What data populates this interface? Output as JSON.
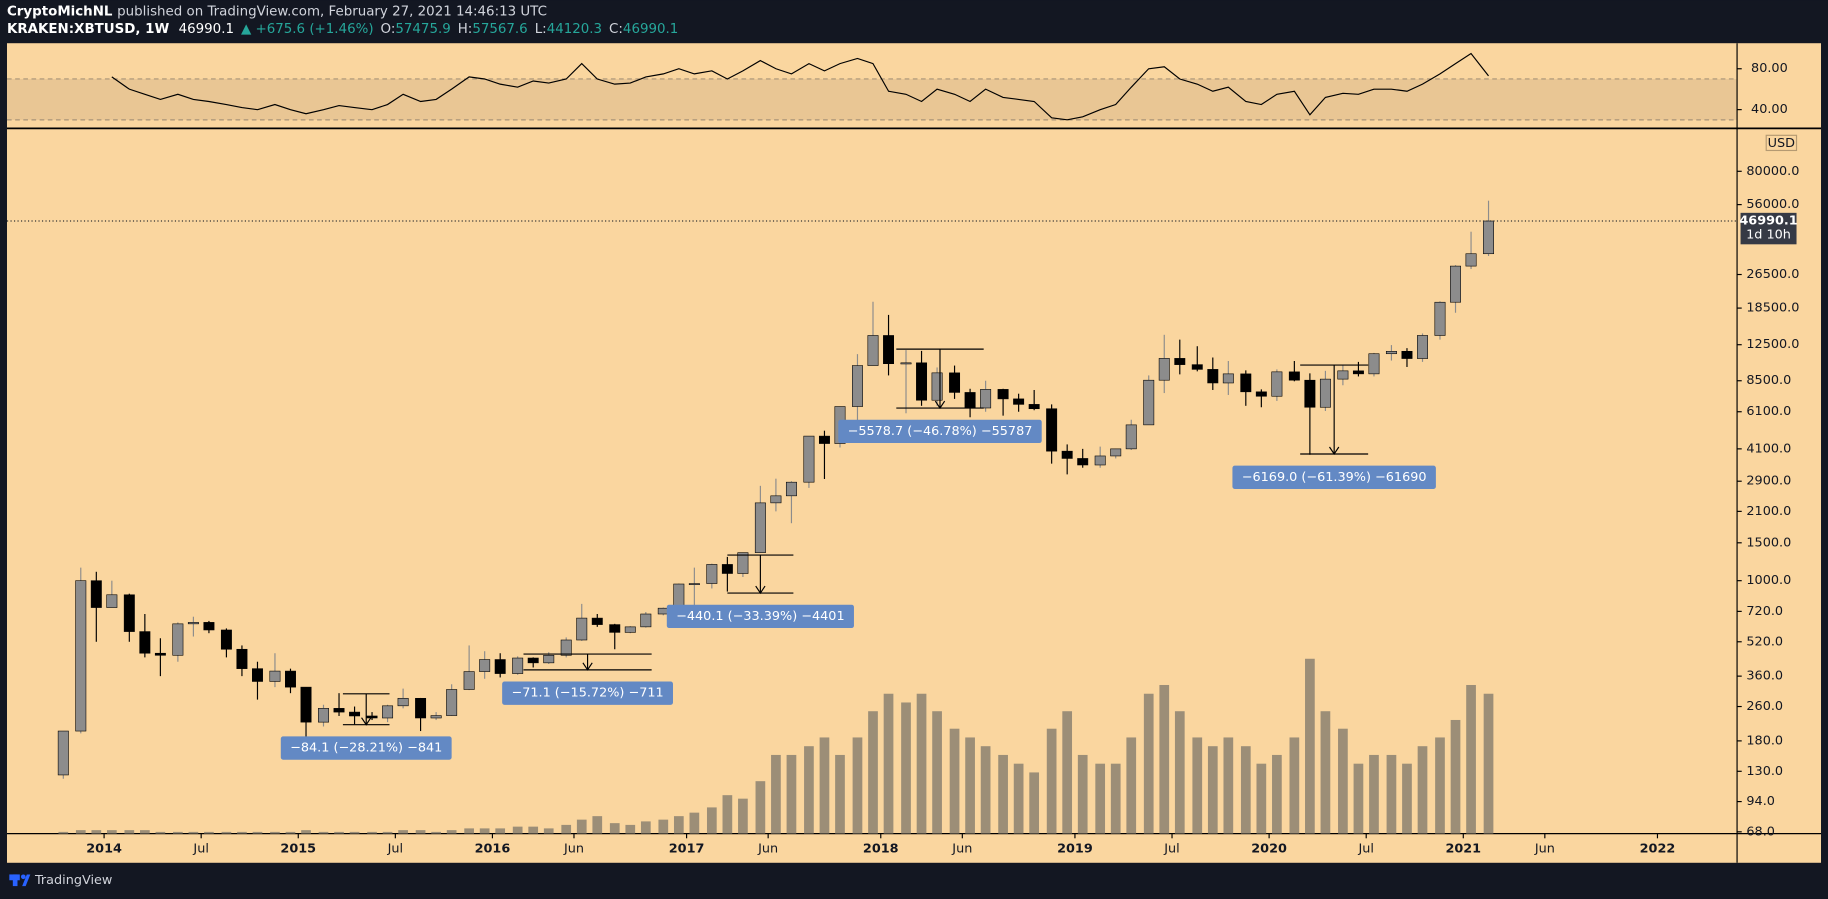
{
  "header": {
    "author": "CryptoMichNL",
    "published": "published on TradingView.com, February 27, 2021 14:46:13 UTC",
    "symbol": "KRAKEN:XBTUSD, 1W",
    "last": "46990.1",
    "change": "▲ +675.6 (+1.46%)",
    "o_label": "O:",
    "o": "57475.9",
    "h_label": "H:",
    "h": "57567.6",
    "l_label": "L:",
    "l": "44120.3",
    "c_label": "C:",
    "c": "46990.1"
  },
  "footer": {
    "brand": "TradingView"
  },
  "chart_data": {
    "type": "candlestick",
    "currency": "USD",
    "log_scale": true,
    "up_color": "#8c8c8c",
    "down_color": "#000000",
    "volume_color": "#8b8170",
    "rsi_color": "#000000",
    "last_price": 46990.1,
    "countdown": "1d 10h",
    "xlim": [
      2013.5,
      2022.41
    ],
    "xticks": [
      {
        "value": 2014,
        "label": "2014"
      },
      {
        "value": 2014.5,
        "label": "Jul"
      },
      {
        "value": 2015,
        "label": "2015"
      },
      {
        "value": 2015.5,
        "label": "Jul"
      },
      {
        "value": 2016,
        "label": "2016"
      },
      {
        "value": 2016.42,
        "label": "Jun"
      },
      {
        "value": 2017,
        "label": "2017"
      },
      {
        "value": 2017.42,
        "label": "Jun"
      },
      {
        "value": 2018,
        "label": "2018"
      },
      {
        "value": 2018.42,
        "label": "Jun"
      },
      {
        "value": 2019,
        "label": "2019"
      },
      {
        "value": 2019.5,
        "label": "Jul"
      },
      {
        "value": 2020,
        "label": "2020"
      },
      {
        "value": 2020.5,
        "label": "Jul"
      },
      {
        "value": 2021,
        "label": "2021"
      },
      {
        "value": 2021.42,
        "label": "Jun"
      },
      {
        "value": 2022,
        "label": "2022"
      }
    ],
    "ylim": [
      66.7,
      123600
    ],
    "yticks": [
      {
        "value": 68,
        "label": "68.0"
      },
      {
        "value": 94,
        "label": "94.0"
      },
      {
        "value": 130,
        "label": "130.0"
      },
      {
        "value": 180,
        "label": "180.0"
      },
      {
        "value": 260,
        "label": "260.0"
      },
      {
        "value": 360,
        "label": "360.0"
      },
      {
        "value": 520,
        "label": "520.0"
      },
      {
        "value": 720,
        "label": "720.0"
      },
      {
        "value": 1000,
        "label": "1000.0"
      },
      {
        "value": 1500,
        "label": "1500.0"
      },
      {
        "value": 2100,
        "label": "2100.0"
      },
      {
        "value": 2900,
        "label": "2900.0"
      },
      {
        "value": 4100,
        "label": "4100.0"
      },
      {
        "value": 6100,
        "label": "6100.0"
      },
      {
        "value": 8500,
        "label": "8500.0"
      },
      {
        "value": 12500,
        "label": "12500.0"
      },
      {
        "value": 18500,
        "label": "18500.0"
      },
      {
        "value": 26500,
        "label": "26500.0"
      },
      {
        "value": 56000,
        "label": "56000.0"
      },
      {
        "value": 80000,
        "label": "80000.0"
      }
    ],
    "rsi_ylim": [
      24,
      105
    ],
    "rsi_yticks": [
      {
        "value": 80,
        "label": "80.00"
      },
      {
        "value": 40,
        "label": "40.00"
      }
    ],
    "rsi_band": [
      30,
      70
    ],
    "volume_lim": [
      0,
      100
    ],
    "x": [
      2013.79,
      2013.88,
      2013.96,
      2014.04,
      2014.13,
      2014.21,
      2014.29,
      2014.38,
      2014.46,
      2014.54,
      2014.63,
      2014.71,
      2014.79,
      2014.88,
      2014.96,
      2015.04,
      2015.13,
      2015.21,
      2015.29,
      2015.38,
      2015.46,
      2015.54,
      2015.63,
      2015.71,
      2015.79,
      2015.88,
      2015.96,
      2016.04,
      2016.13,
      2016.21,
      2016.29,
      2016.38,
      2016.46,
      2016.54,
      2016.63,
      2016.71,
      2016.79,
      2016.88,
      2016.96,
      2017.04,
      2017.13,
      2017.21,
      2017.29,
      2017.38,
      2017.46,
      2017.54,
      2017.63,
      2017.71,
      2017.79,
      2017.88,
      2017.96,
      2018.04,
      2018.13,
      2018.21,
      2018.29,
      2018.38,
      2018.46,
      2018.54,
      2018.63,
      2018.71,
      2018.79,
      2018.88,
      2018.96,
      2019.04,
      2019.13,
      2019.21,
      2019.29,
      2019.38,
      2019.46,
      2019.54,
      2019.63,
      2019.71,
      2019.79,
      2019.88,
      2019.96,
      2020.04,
      2020.13,
      2020.21,
      2020.29,
      2020.38,
      2020.46,
      2020.54,
      2020.63,
      2020.71,
      2020.79,
      2020.88,
      2020.96,
      2021.04,
      2021.13
    ],
    "open": [
      125,
      200,
      1000,
      750,
      860,
      580,
      460,
      450,
      630,
      640,
      590,
      480,
      390,
      340,
      380,
      320,
      220,
      255,
      245,
      235,
      230,
      262,
      284,
      230,
      236,
      312,
      378,
      430,
      370,
      437,
      415,
      450,
      530,
      670,
      625,
      575,
      610,
      700,
      745,
      965,
      970,
      1190,
      1080,
      1350,
      2300,
      2480,
      2870,
      4700,
      4340,
      6450,
      10000,
      13800,
      10200,
      10300,
      6900,
      9250,
      7500,
      6350,
      7750,
      7000,
      6600,
      6300,
      4000,
      3700,
      3450,
      3800,
      4100,
      5300,
      8550,
      10800,
      10100,
      9600,
      8300,
      9150,
      7550,
      7200,
      9350,
      8550,
      6400,
      8650,
      9450,
      9150,
      11350,
      11650,
      10780,
      13800,
      19700,
      29000,
      33100
    ],
    "high": [
      200,
      1150,
      1100,
      1000,
      870,
      700,
      540,
      640,
      680,
      650,
      600,
      500,
      420,
      460,
      390,
      320,
      265,
      300,
      260,
      245,
      265,
      315,
      285,
      245,
      330,
      500,
      470,
      460,
      445,
      440,
      465,
      545,
      780,
      700,
      630,
      615,
      715,
      750,
      970,
      1150,
      1200,
      1290,
      1350,
      2760,
      2980,
      2900,
      4700,
      4980,
      6450,
      11300,
      19800,
      17200,
      11800,
      11700,
      9800,
      10000,
      7800,
      8500,
      7800,
      7400,
      7700,
      6600,
      4300,
      4100,
      4200,
      4100,
      5600,
      9000,
      13900,
      13200,
      12300,
      10900,
      10500,
      9500,
      7750,
      9600,
      10500,
      9200,
      9450,
      10050,
      10400,
      11450,
      12450,
      12050,
      14100,
      19900,
      29300,
      41900,
      58400
    ],
    "low": [
      120,
      195,
      520,
      750,
      520,
      440,
      360,
      420,
      550,
      570,
      440,
      360,
      280,
      320,
      300,
      170,
      210,
      235,
      215,
      225,
      220,
      255,
      200,
      225,
      235,
      310,
      350,
      355,
      365,
      395,
      410,
      440,
      525,
      610,
      480,
      570,
      605,
      690,
      740,
      750,
      920,
      890,
      1040,
      1350,
      2100,
      1850,
      2700,
      2970,
      4160,
      5500,
      10000,
      9000,
      6000,
      6500,
      6500,
      7000,
      5750,
      6100,
      5850,
      6100,
      6200,
      3500,
      3120,
      3350,
      3350,
      3700,
      4050,
      5300,
      7450,
      9100,
      9400,
      7700,
      7300,
      6500,
      6400,
      6850,
      8450,
      3850,
      6150,
      8100,
      8900,
      8900,
      10550,
      9850,
      10400,
      13200,
      17600,
      28100,
      32300
    ],
    "close": [
      200,
      1000,
      750,
      860,
      580,
      460,
      450,
      630,
      640,
      590,
      480,
      390,
      340,
      380,
      320,
      220,
      255,
      245,
      235,
      230,
      262,
      284,
      230,
      236,
      312,
      378,
      430,
      370,
      437,
      415,
      450,
      530,
      670,
      625,
      575,
      610,
      700,
      745,
      965,
      970,
      1190,
      1080,
      1350,
      2300,
      2480,
      2870,
      4700,
      4340,
      6450,
      10000,
      13800,
      10200,
      10300,
      6900,
      9250,
      7500,
      6350,
      7750,
      7000,
      6600,
      6300,
      4000,
      3700,
      3450,
      3800,
      4100,
      5300,
      8550,
      10800,
      10100,
      9600,
      8300,
      9150,
      7550,
      7200,
      9350,
      8550,
      6400,
      8650,
      9450,
      9150,
      11350,
      11650,
      10780,
      13800,
      19700,
      29000,
      33100,
      46990.1
    ],
    "volume": [
      1,
      2,
      2,
      2,
      2,
      2,
      1,
      1,
      1,
      1,
      1,
      1,
      1,
      1,
      1,
      2,
      1,
      1,
      1,
      1,
      1,
      2,
      2,
      1,
      2,
      3,
      3,
      3,
      4,
      4,
      3,
      5,
      8,
      10,
      6,
      5,
      7,
      8,
      10,
      12,
      15,
      22,
      20,
      30,
      45,
      45,
      50,
      55,
      45,
      55,
      70,
      80,
      75,
      80,
      70,
      60,
      55,
      50,
      45,
      40,
      35,
      60,
      70,
      45,
      40,
      40,
      55,
      80,
      85,
      70,
      55,
      50,
      55,
      50,
      40,
      45,
      55,
      100,
      70,
      60,
      40,
      45,
      45,
      40,
      50,
      55,
      65,
      85,
      80
    ],
    "rsi": [
      null,
      null,
      null,
      72,
      60,
      55,
      50,
      55,
      50,
      48,
      45,
      42,
      40,
      45,
      40,
      36,
      40,
      44,
      42,
      40,
      45,
      55,
      48,
      50,
      60,
      72,
      70,
      65,
      62,
      68,
      66,
      70,
      85,
      70,
      65,
      66,
      72,
      75,
      80,
      75,
      78,
      70,
      78,
      88,
      80,
      75,
      85,
      78,
      85,
      90,
      85,
      58,
      55,
      48,
      60,
      55,
      48,
      60,
      52,
      50,
      48,
      32,
      30,
      33,
      40,
      45,
      62,
      80,
      82,
      70,
      65,
      58,
      62,
      48,
      45,
      55,
      58,
      35,
      52,
      56,
      55,
      60,
      60,
      58,
      65,
      75,
      85,
      95,
      73
    ],
    "annotations": [
      {
        "text": "−84.1 (−28.21%) −841",
        "x": [
          2015.23,
          2015.47
        ],
        "from": 298,
        "to": 214
      },
      {
        "text": "−71.1 (−15.72%) −711",
        "x": [
          2016.16,
          2016.82
        ],
        "from": 456,
        "to": 385
      },
      {
        "text": "−440.1 (−33.39%) −4401",
        "x": [
          2017.21,
          2017.55
        ],
        "from": 1316,
        "to": 876
      },
      {
        "text": "−5578.7 (−46.78%) −55787",
        "x": [
          2018.08,
          2018.53
        ],
        "from": 11925,
        "to": 6346
      },
      {
        "text": "−6169.0 (−61.39%) −61690",
        "x": [
          2020.16,
          2020.51
        ],
        "from": 10050,
        "to": 3881
      }
    ]
  }
}
